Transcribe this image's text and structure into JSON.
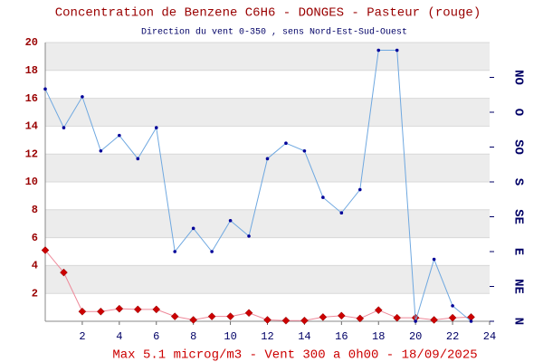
{
  "chart_data": {
    "type": "line",
    "title": "Concentration de Benzene C6H6  -   DONGES - Pasteur (rouge)",
    "subtitle": "Direction du vent 0-350 , sens Nord-Est-Sud-Ouest",
    "footer": "Max 5.1 microg/m3 - Vent 300  a 0h00 - 18/09/2025",
    "x": [
      0,
      1,
      2,
      3,
      4,
      5,
      6,
      7,
      8,
      9,
      10,
      11,
      12,
      13,
      14,
      15,
      16,
      17,
      18,
      19,
      20,
      21,
      22,
      23
    ],
    "xlim": [
      0,
      24
    ],
    "xticks": [
      2,
      4,
      6,
      8,
      10,
      12,
      14,
      16,
      18,
      20,
      22,
      24
    ],
    "ylim": [
      0,
      20
    ],
    "yticks": [
      2,
      4,
      6,
      8,
      10,
      12,
      14,
      16,
      18,
      20
    ],
    "y2lim": [
      0,
      360
    ],
    "y2ticks": [
      {
        "value": 0,
        "label": "N"
      },
      {
        "value": 45,
        "label": "NE"
      },
      {
        "value": 90,
        "label": "E"
      },
      {
        "value": 135,
        "label": "SE"
      },
      {
        "value": 180,
        "label": "S"
      },
      {
        "value": 225,
        "label": "SO"
      },
      {
        "value": 270,
        "label": "O"
      },
      {
        "value": 315,
        "label": "NO"
      }
    ],
    "grid": true,
    "series": [
      {
        "color": "#cc0000",
        "line_color": "#ee8899",
        "marker": "diamond",
        "values": [
          5.1,
          3.5,
          0.7,
          0.7,
          0.9,
          0.85,
          0.85,
          0.35,
          0.1,
          0.35,
          0.35,
          0.6,
          0.1,
          0.05,
          0.05,
          0.3,
          0.4,
          0.2,
          0.8,
          0.25,
          0.25,
          0.1,
          0.25,
          0.3
        ]
      },
      {
        "color": "#000099",
        "line_color": "#6fa8e0",
        "marker": "dot",
        "axis": "y2",
        "values": [
          300,
          250,
          290,
          220,
          240,
          210,
          250,
          90,
          120,
          90,
          130,
          110,
          210,
          230,
          220,
          160,
          140,
          170,
          350,
          350,
          0,
          80,
          20,
          0
        ]
      }
    ]
  }
}
